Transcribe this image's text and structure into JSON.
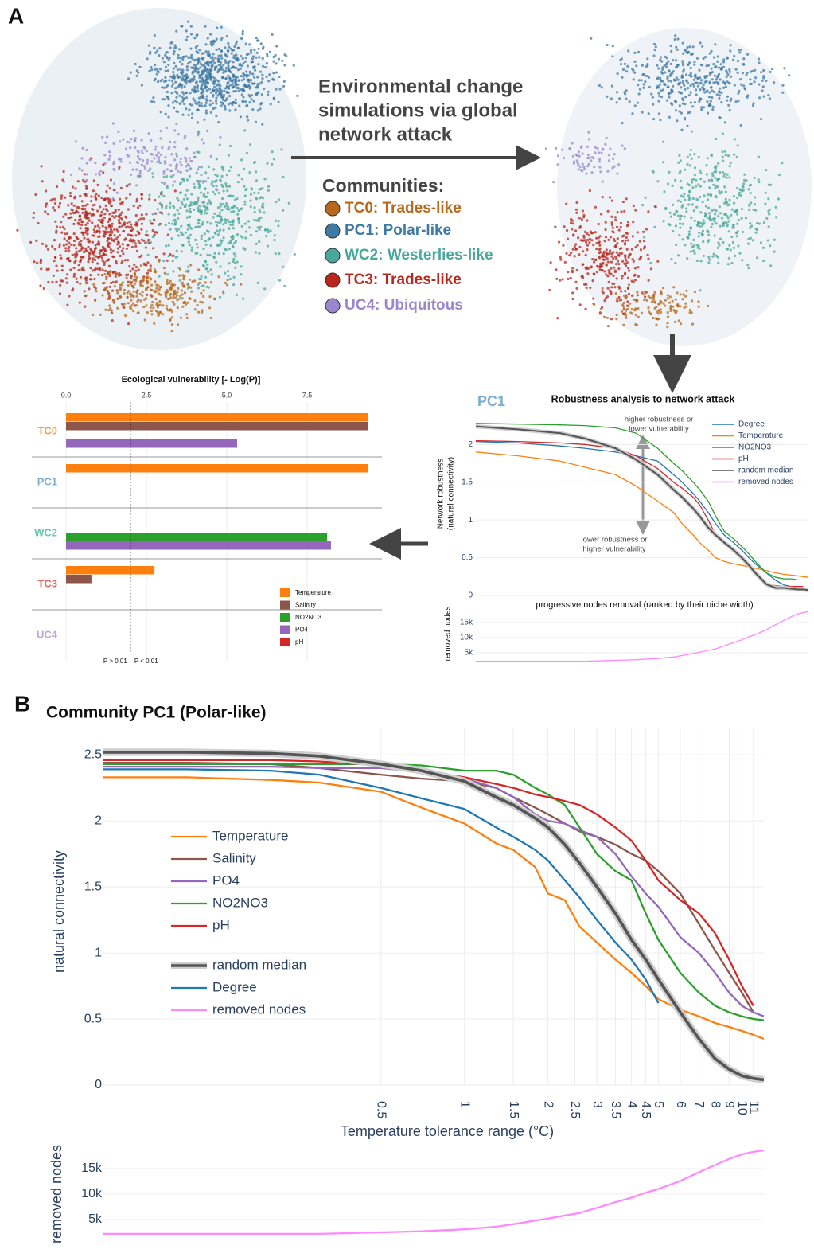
{
  "panel_a": {
    "label": "A",
    "arrow_text": [
      "Environmental change simulations via global",
      "network attack"
    ],
    "arrow_text_lines": [
      "Environmental change",
      "simulations via global",
      "network attack"
    ],
    "communities_title": "Communities:",
    "communities": [
      {
        "name": "TC0: Trades-like",
        "color": "#b8681a"
      },
      {
        "name": "PC1: Polar-like",
        "color": "#3f7aa3"
      },
      {
        "name": "WC2: Westerlies-like",
        "color": "#4aa89a"
      },
      {
        "name": "TC3: Trades-like",
        "color": "#b8261c"
      },
      {
        "name": "UC4: Ubiquitous",
        "color": "#9b86d0"
      }
    ]
  },
  "panel_b": {
    "label": "B"
  },
  "chart_data": [
    {
      "type": "bar",
      "orientation": "horizontal",
      "title": "Ecological vulnerability [- Log(P)]",
      "categories": [
        "TC0",
        "PC1",
        "WC2",
        "TC3",
        "UC4"
      ],
      "category_colors": [
        "#f5a04f",
        "#7aaed0",
        "#6bc3b2",
        "#e8645a",
        "#b9a9dc"
      ],
      "series": [
        {
          "name": "Temperature",
          "color": "#ff7f0e",
          "values": [
            9.38,
            9.38,
            null,
            2.75,
            null
          ]
        },
        {
          "name": "Salinity",
          "color": "#8c564b",
          "values": [
            9.38,
            null,
            null,
            0.79,
            null
          ]
        },
        {
          "name": "NO2NO3",
          "color": "#2ca02c",
          "values": [
            null,
            null,
            8.12,
            null,
            null
          ]
        },
        {
          "name": "PO4",
          "color": "#9467bd",
          "values": [
            5.32,
            null,
            8.24,
            null,
            null
          ]
        },
        {
          "name": "pH",
          "color": "#d62728",
          "values": [
            null,
            null,
            null,
            null,
            null
          ]
        }
      ],
      "xlim": [
        0,
        9.8
      ],
      "xticks": [
        {
          "value": 0,
          "label": "0.0"
        },
        2.5,
        {
          "value": 5,
          "label": "5.0"
        },
        7.5
      ],
      "threshold": {
        "value": 2,
        "labels": [
          "P > 0.01",
          "P < 0.01"
        ]
      }
    },
    {
      "type": "line",
      "panel_label": "PC1",
      "title": "Robustness analysis to network attack",
      "ylabel": [
        "Network robustness",
        "(natural connectivity)"
      ],
      "xlabel": "progressive nodes removal (ranked by their niche width)",
      "annotations": [
        [
          "higher robustness or",
          "lower vulnerability"
        ],
        [
          "lower robustness or",
          "higher vulnerability"
        ]
      ],
      "log_x": true,
      "xlim": [
        0.05,
        12
      ],
      "ylim": [
        0,
        2.32
      ],
      "yticks": [
        0,
        0.5,
        1,
        1.5,
        2
      ],
      "grid": true,
      "x": [
        0.05,
        0.1,
        0.2,
        0.3,
        0.5,
        0.7,
        1,
        1.3,
        1.5,
        1.8,
        2,
        2.3,
        2.6,
        3,
        3.5,
        4,
        4.5,
        5,
        6,
        7,
        8,
        9,
        10,
        11,
        12
      ],
      "series": [
        {
          "name": "Degree",
          "color": "#1f77b4",
          "values": [
            2.04,
            2.02,
            1.98,
            1.95,
            1.9,
            1.85,
            1.78,
            1.6,
            1.5,
            1.35,
            1.25,
            1.1,
            0.95,
            0.8,
            0.7,
            0.6,
            0.5,
            0.42,
            0.3,
            0.2,
            0.14,
            0.12,
            0.1,
            0.09,
            0.08
          ]
        },
        {
          "name": "Temperature",
          "color": "#ff7f0e",
          "values": [
            1.9,
            1.85,
            1.78,
            1.7,
            1.6,
            1.45,
            1.25,
            1.1,
            0.95,
            0.8,
            0.7,
            0.6,
            0.5,
            0.45,
            0.42,
            0.4,
            0.38,
            0.36,
            0.33,
            0.3,
            0.28,
            0.27,
            0.26,
            0.25,
            0.24
          ]
        },
        {
          "name": "NO2NO3",
          "color": "#2ca02c",
          "values": [
            2.28,
            2.27,
            2.26,
            2.25,
            2.22,
            2.15,
            1.95,
            1.75,
            1.65,
            1.5,
            1.4,
            1.25,
            1.05,
            0.85,
            0.75,
            0.65,
            0.55,
            0.45,
            0.3,
            0.24,
            0.22,
            0.22,
            0.21,
            null,
            null
          ]
        },
        {
          "name": "pH",
          "color": "#d62728",
          "values": [
            2.05,
            2.04,
            2.02,
            2.0,
            1.95,
            1.85,
            1.68,
            1.5,
            1.42,
            1.3,
            1.2,
            1.0,
            0.8,
            0.7,
            0.6,
            0.5,
            0.42,
            0.3,
            0.15,
            0.13,
            0.12,
            0.12,
            0.12,
            0.12,
            null
          ]
        },
        {
          "name": "random median",
          "color": "#555555",
          "values": [
            2.24,
            2.2,
            2.15,
            2.08,
            1.95,
            1.8,
            1.6,
            1.4,
            1.3,
            1.15,
            1.05,
            0.9,
            0.8,
            0.7,
            0.6,
            0.5,
            0.4,
            0.3,
            0.15,
            0.1,
            0.1,
            0.09,
            0.08,
            0.08,
            0.07
          ]
        }
      ]
    },
    {
      "type": "line",
      "ylabel": "removed nodes",
      "log_x": true,
      "xlim": [
        0.05,
        12
      ],
      "ylim": [
        0,
        20000
      ],
      "yticks": [
        {
          "value": 5000,
          "label": "5k"
        },
        {
          "value": 10000,
          "label": "10k"
        },
        {
          "value": 15000,
          "label": "15k"
        }
      ],
      "grid": true,
      "x": [
        0.05,
        0.1,
        0.2,
        0.3,
        0.5,
        0.7,
        1,
        1.3,
        1.5,
        1.8,
        2,
        2.3,
        2.6,
        3,
        3.5,
        4,
        4.5,
        5,
        6,
        7,
        8,
        9,
        10,
        11,
        12
      ],
      "series": [
        {
          "name": "removed nodes",
          "color": "#ff88ff",
          "values": [
            2200,
            2200,
            2200,
            2200,
            2500,
            2700,
            3100,
            3600,
            4100,
            4800,
            5200,
            5800,
            6300,
            7300,
            8400,
            9300,
            10300,
            11000,
            12600,
            14300,
            15700,
            16900,
            17800,
            18300,
            18600
          ]
        }
      ]
    },
    {
      "type": "line",
      "title": "Community PC1 (Polar-like)",
      "ylabel": "natural connectivity",
      "xlabel": "Temperature tolerance range (°C)",
      "log_x": true,
      "xlim": [
        0.05,
        12
      ],
      "ylim": [
        0,
        2.7
      ],
      "yticks": [
        0,
        0.5,
        1,
        1.5,
        2,
        2.5
      ],
      "grid": true,
      "xticks": [
        0.5,
        1,
        1.5,
        2,
        2.5,
        3,
        3.5,
        4,
        4.5,
        5,
        6,
        7,
        8,
        9,
        10,
        11
      ],
      "x": [
        0.05,
        0.1,
        0.2,
        0.3,
        0.5,
        0.7,
        1,
        1.3,
        1.5,
        1.8,
        2,
        2.3,
        2.6,
        3,
        3.5,
        4,
        4.5,
        5,
        6,
        7,
        8,
        9,
        10,
        11,
        12
      ],
      "series": [
        {
          "name": "Temperature",
          "color": "#ff7f0e",
          "values": [
            2.33,
            2.33,
            2.31,
            2.29,
            2.22,
            2.1,
            1.98,
            1.83,
            1.78,
            1.65,
            1.45,
            1.4,
            1.2,
            1.08,
            0.95,
            0.85,
            0.75,
            0.65,
            0.57,
            0.52,
            0.47,
            0.44,
            0.41,
            0.38,
            0.35
          ]
        },
        {
          "name": "Salinity",
          "color": "#8c564b",
          "values": [
            2.44,
            2.44,
            2.43,
            2.4,
            2.35,
            2.32,
            2.3,
            2.25,
            2.18,
            2.1,
            2.05,
            1.98,
            1.92,
            1.88,
            1.82,
            1.75,
            1.7,
            1.62,
            1.45,
            1.22,
            1.02,
            0.85,
            0.7,
            0.55,
            null
          ]
        },
        {
          "name": "PO4",
          "color": "#9467bd",
          "values": [
            2.41,
            2.41,
            2.41,
            2.4,
            2.4,
            2.37,
            2.32,
            2.25,
            2.18,
            2.05,
            2.0,
            1.98,
            1.93,
            1.88,
            1.75,
            1.58,
            1.45,
            1.35,
            1.12,
            1.0,
            0.85,
            0.7,
            0.6,
            0.55,
            0.52
          ]
        },
        {
          "name": "NO2NO3",
          "color": "#2ca02c",
          "values": [
            2.43,
            2.43,
            2.43,
            2.43,
            2.43,
            2.42,
            2.38,
            2.38,
            2.35,
            2.25,
            2.2,
            2.12,
            1.95,
            1.75,
            1.62,
            1.55,
            1.3,
            1.1,
            0.85,
            0.7,
            0.6,
            0.55,
            0.52,
            0.5,
            0.49
          ]
        },
        {
          "name": "pH",
          "color": "#d62728",
          "values": [
            2.46,
            2.46,
            2.46,
            2.45,
            2.42,
            2.38,
            2.33,
            2.28,
            2.25,
            2.2,
            2.18,
            2.15,
            2.12,
            2.05,
            1.95,
            1.85,
            1.7,
            1.55,
            1.4,
            1.3,
            1.15,
            0.95,
            0.75,
            0.6,
            null
          ]
        },
        {
          "name": "random median",
          "color": "#555555",
          "values": [
            2.52,
            2.52,
            2.51,
            2.49,
            2.43,
            2.38,
            2.3,
            2.18,
            2.12,
            2.02,
            1.95,
            1.82,
            1.68,
            1.5,
            1.3,
            1.1,
            0.95,
            0.8,
            0.55,
            0.35,
            0.2,
            0.12,
            0.07,
            0.05,
            0.04
          ]
        },
        {
          "name": "Degree",
          "color": "#1f77b4",
          "values": [
            2.39,
            2.39,
            2.38,
            2.35,
            2.25,
            2.17,
            2.09,
            1.95,
            1.88,
            1.78,
            1.7,
            1.55,
            1.42,
            1.25,
            1.08,
            0.95,
            0.8,
            0.62,
            null,
            null,
            null,
            null,
            null,
            null,
            null
          ]
        }
      ]
    },
    {
      "type": "line",
      "ylabel": "removed nodes",
      "log_x": true,
      "xlim": [
        0.05,
        12
      ],
      "ylim": [
        0,
        20000
      ],
      "yticks": [
        {
          "value": 5000,
          "label": "5k"
        },
        {
          "value": 10000,
          "label": "10k"
        },
        {
          "value": 15000,
          "label": "15k"
        }
      ],
      "grid": true,
      "x": [
        0.05,
        0.1,
        0.2,
        0.3,
        0.5,
        0.7,
        1,
        1.3,
        1.5,
        1.8,
        2,
        2.3,
        2.6,
        3,
        3.5,
        4,
        4.5,
        5,
        6,
        7,
        8,
        9,
        10,
        11,
        12
      ],
      "series": [
        {
          "name": "removed nodes",
          "color": "#ff88ff",
          "values": [
            2200,
            2200,
            2200,
            2200,
            2500,
            2700,
            3100,
            3600,
            4100,
            4800,
            5200,
            5800,
            6300,
            7300,
            8400,
            9300,
            10300,
            11000,
            12600,
            14300,
            15700,
            16900,
            17800,
            18300,
            18600
          ]
        }
      ]
    }
  ]
}
